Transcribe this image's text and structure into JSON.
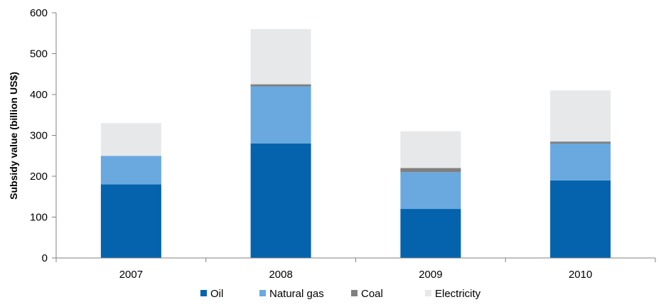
{
  "chart_data": {
    "type": "bar",
    "stacked": true,
    "title": "",
    "xlabel": "",
    "ylabel": "Subsidy value (billion US$)",
    "ylim": [
      0,
      600
    ],
    "yticks": [
      0,
      100,
      200,
      300,
      400,
      500,
      600
    ],
    "ytick_labels": [
      "0",
      "100",
      "200",
      "300",
      "400",
      "500",
      "600"
    ],
    "categories": [
      "2007",
      "2008",
      "2009",
      "2010"
    ],
    "grid": false,
    "legend_position": "bottom",
    "series": [
      {
        "name": "Oil",
        "color": "#0563ad",
        "values": [
          180,
          280,
          120,
          190
        ]
      },
      {
        "name": "Natural gas",
        "color": "#6aa9df",
        "values": [
          70,
          140,
          90,
          90
        ]
      },
      {
        "name": "Coal",
        "color": "#808080",
        "values": [
          0,
          5,
          10,
          5
        ]
      },
      {
        "name": "Electricity",
        "color": "#e6e8e9",
        "values": [
          80,
          135,
          90,
          125
        ]
      }
    ]
  }
}
